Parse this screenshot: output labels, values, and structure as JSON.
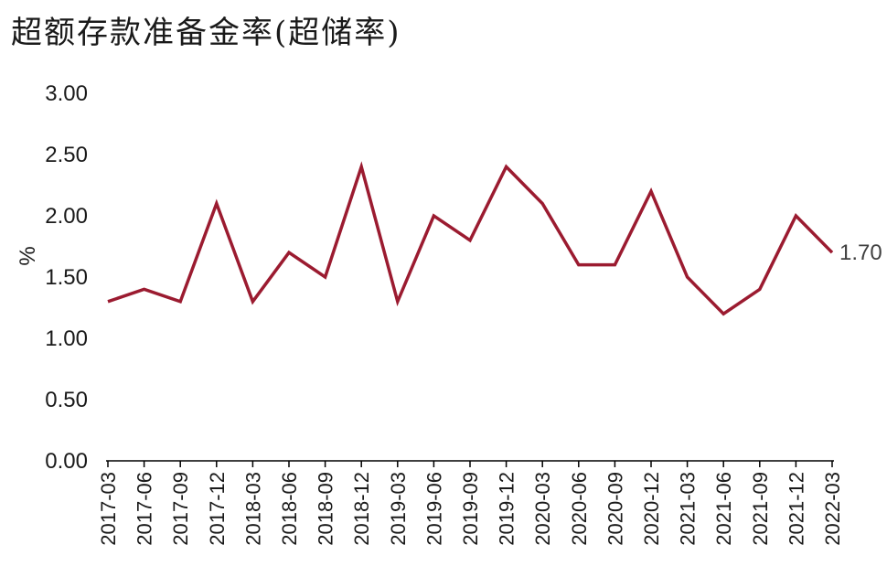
{
  "chart_data": {
    "type": "line",
    "title": "超额存款准备金率(超储率)",
    "ylabel": "%",
    "ylim": [
      0,
      3
    ],
    "yticks": [
      "0.00",
      "0.50",
      "1.00",
      "1.50",
      "2.00",
      "2.50",
      "3.00"
    ],
    "categories": [
      "2017-03",
      "2017-06",
      "2017-09",
      "2017-12",
      "2018-03",
      "2018-06",
      "2018-09",
      "2018-12",
      "2019-03",
      "2019-06",
      "2019-09",
      "2019-12",
      "2020-03",
      "2020-06",
      "2020-09",
      "2020-12",
      "2021-03",
      "2021-06",
      "2021-09",
      "2021-12",
      "2022-03"
    ],
    "series": [
      {
        "values": [
          1.3,
          1.4,
          1.3,
          2.1,
          1.3,
          1.7,
          1.5,
          2.4,
          1.3,
          2.0,
          1.8,
          2.4,
          2.1,
          1.6,
          1.6,
          2.2,
          1.5,
          1.2,
          1.4,
          2.0,
          1.7
        ],
        "color": "#9b1b30"
      }
    ],
    "last_label": "1.70",
    "grid": false,
    "legend": "none"
  }
}
